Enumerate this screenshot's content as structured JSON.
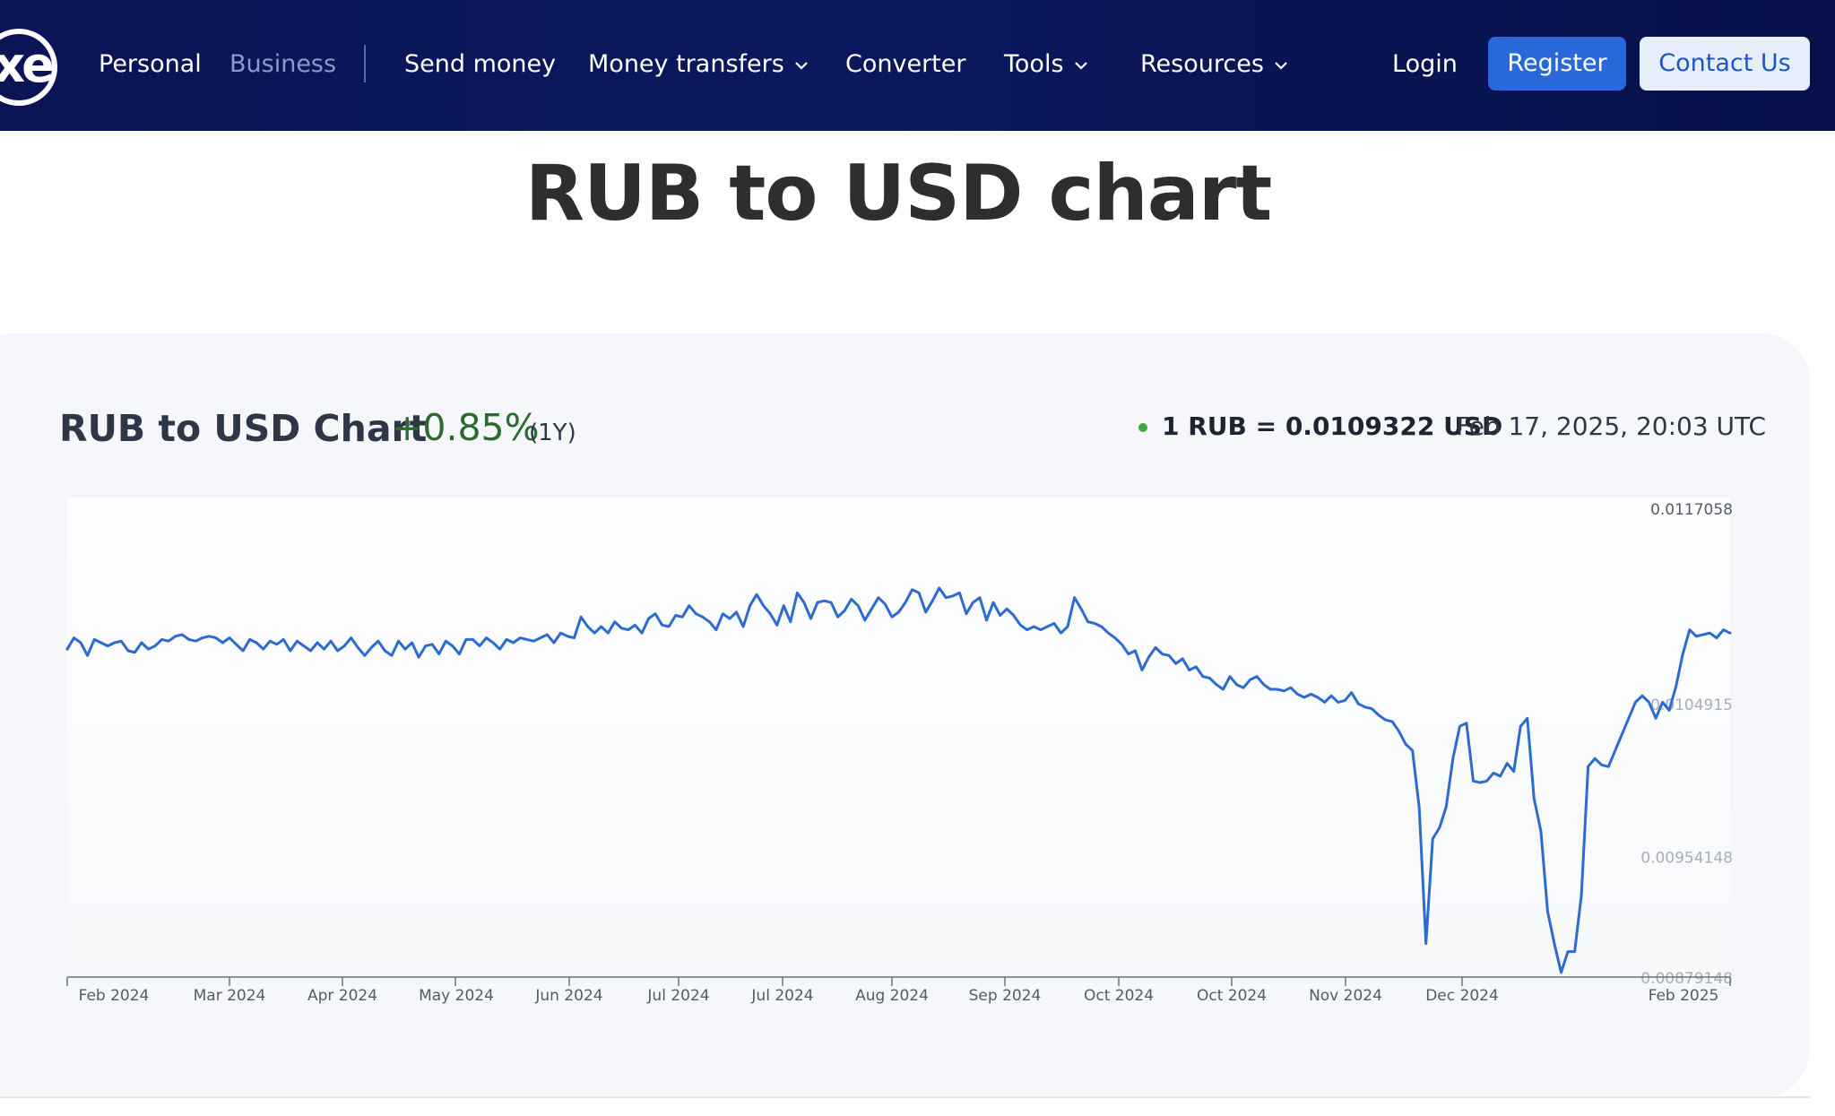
{
  "nav": {
    "logo_text": "xe",
    "personal": "Personal",
    "business": "Business",
    "send_money": "Send money",
    "money_transfers": "Money transfers",
    "converter": "Converter",
    "tools": "Tools",
    "resources": "Resources",
    "login": "Login",
    "register": "Register",
    "contact": "Contact Us"
  },
  "page": {
    "title": "RUB to USD chart"
  },
  "card": {
    "title": "RUB to USD Chart",
    "change": "+0.85%",
    "period": "(1Y)",
    "rate": "1 RUB = 0.0109322 USD",
    "timestamp": "Feb 17, 2025, 20:03 UTC"
  },
  "colors": {
    "nav_bg": "#0a1456",
    "register_bg": "#2868d8",
    "contact_bg": "#e6eef9",
    "line": "#2c6bd0",
    "positive": "#2a6b2e",
    "status_dot": "#3cab3c"
  },
  "chart_data": {
    "type": "line",
    "x_ticks": [
      "Feb 2024",
      "Mar 2024",
      "Apr 2024",
      "May 2024",
      "Jun 2024",
      "Jul 2024",
      "Jul 2024",
      "Aug 2024",
      "Sep 2024",
      "Oct 2024",
      "Oct 2024",
      "Nov 2024",
      "Dec 2024",
      "Feb 2025"
    ],
    "y_tick_labels": [
      "0.0117058",
      "0.0104915",
      "0.00954148",
      "0.00879148"
    ],
    "grid": false,
    "series": [
      {
        "values": [
          0.01083,
          0.0109,
          0.01087,
          0.01079,
          0.01089,
          0.01087,
          0.01085,
          0.01087,
          0.01088,
          0.01082,
          0.01081,
          0.01087,
          0.01083,
          0.01085,
          0.01089,
          0.01088,
          0.01091,
          0.01092,
          0.01089,
          0.01088,
          0.0109,
          0.01091,
          0.0109,
          0.01087,
          0.0109,
          0.01086,
          0.01082,
          0.01089,
          0.01087,
          0.01083,
          0.01088,
          0.01086,
          0.01089,
          0.01082,
          0.01088,
          0.01085,
          0.01082,
          0.01087,
          0.01083,
          0.01088,
          0.01082,
          0.01085,
          0.0109,
          0.01084,
          0.01079,
          0.01084,
          0.01088,
          0.01082,
          0.01079,
          0.01088,
          0.01083,
          0.01087,
          0.01078,
          0.01085,
          0.01086,
          0.0108,
          0.01088,
          0.01085,
          0.0108,
          0.01089,
          0.01089,
          0.01085,
          0.0109,
          0.01087,
          0.01083,
          0.01089,
          0.01087,
          0.0109,
          0.01089,
          0.01088,
          0.0109,
          0.01092,
          0.01087,
          0.01093,
          0.01091,
          0.0109,
          0.01103,
          0.01097,
          0.01093,
          0.01097,
          0.01093,
          0.011,
          0.01096,
          0.01095,
          0.01098,
          0.01093,
          0.01102,
          0.01105,
          0.01098,
          0.01097,
          0.01104,
          0.01103,
          0.0111,
          0.01105,
          0.01103,
          0.011,
          0.01095,
          0.01105,
          0.01102,
          0.01106,
          0.01097,
          0.0111,
          0.01117,
          0.0111,
          0.01105,
          0.01098,
          0.0111,
          0.011,
          0.01118,
          0.01112,
          0.01102,
          0.01112,
          0.01113,
          0.01112,
          0.01103,
          0.01107,
          0.01114,
          0.0111,
          0.01101,
          0.01108,
          0.01115,
          0.01111,
          0.01103,
          0.01106,
          0.01112,
          0.0112,
          0.01118,
          0.01106,
          0.01113,
          0.01121,
          0.01115,
          0.01116,
          0.01118,
          0.01105,
          0.01112,
          0.01115,
          0.01101,
          0.01112,
          0.01104,
          0.01108,
          0.01104,
          0.01098,
          0.01095,
          0.01097,
          0.01095,
          0.01097,
          0.01099,
          0.01093,
          0.01097,
          0.01115,
          0.01108,
          0.011,
          0.01099,
          0.01097,
          0.01093,
          0.0109,
          0.01086,
          0.0108,
          0.01082,
          0.0107,
          0.01078,
          0.01084,
          0.0108,
          0.01079,
          0.01074,
          0.01077,
          0.0107,
          0.01072,
          0.01066,
          0.01065,
          0.01061,
          0.01058,
          0.01066,
          0.01061,
          0.01059,
          0.01064,
          0.01066,
          0.01061,
          0.01058,
          0.01058,
          0.01057,
          0.01059,
          0.01055,
          0.01053,
          0.01055,
          0.01053,
          0.0105,
          0.01054,
          0.0105,
          0.01051,
          0.01056,
          0.01049,
          0.01047,
          0.01046,
          0.01042,
          0.01039,
          0.01038,
          0.01032,
          0.01024,
          0.0102,
          0.00985,
          0.009,
          0.00965,
          0.00972,
          0.00985,
          0.01015,
          0.01035,
          0.01037,
          0.01001,
          0.01,
          0.01001,
          0.01006,
          0.01004,
          0.01012,
          0.01007,
          0.01035,
          0.0104,
          0.0099,
          0.0097,
          0.0092,
          0.009,
          0.00882,
          0.00895,
          0.00895,
          0.0093,
          0.0101,
          0.01015,
          0.01011,
          0.0101,
          0.0102,
          0.0103,
          0.0104,
          0.0105,
          0.01054,
          0.0105,
          0.0104,
          0.0105,
          0.01045,
          0.0106,
          0.0108,
          0.01095,
          0.01091,
          0.01092,
          0.01093,
          0.0109,
          0.01095,
          0.01093
        ]
      }
    ]
  }
}
